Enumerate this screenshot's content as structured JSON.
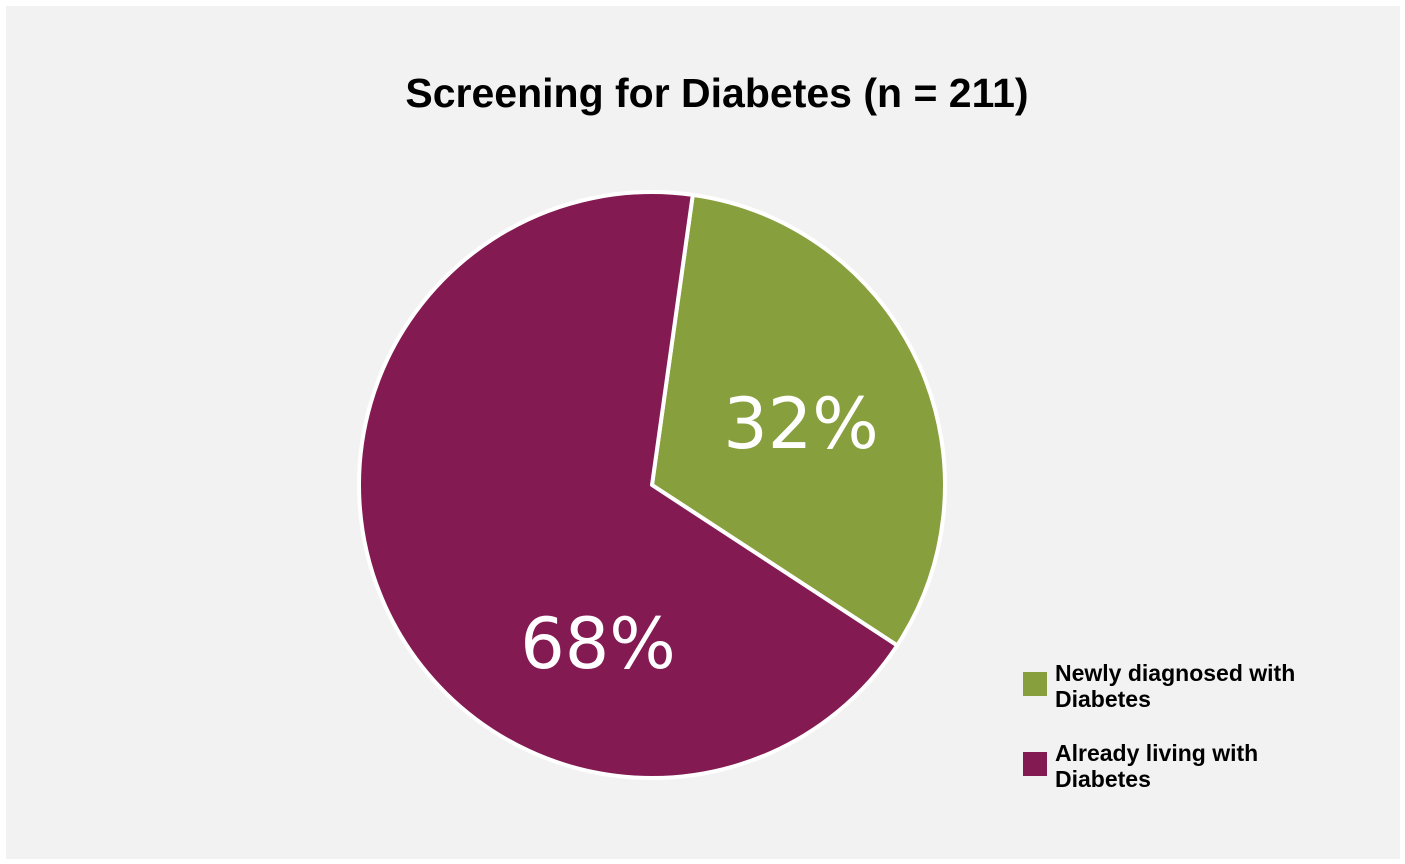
{
  "chart_data": {
    "type": "pie",
    "title": "Screening for Diabetes (n = 211)",
    "slices": [
      {
        "label": "Newly diagnosed with Diabetes",
        "value": 32,
        "value_label": "32%",
        "color": "#879f3d"
      },
      {
        "label": "Already living with Diabetes",
        "value": 68,
        "value_label": "68%",
        "color": "#841a52"
      }
    ],
    "legend_position": "bottom-right"
  }
}
